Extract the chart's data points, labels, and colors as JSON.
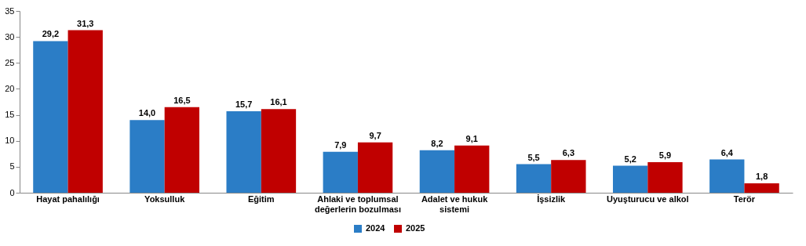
{
  "chart_data": {
    "type": "bar",
    "categories": [
      "Hayat pahalılığı",
      "Yoksulluk",
      "Eğitim",
      "Ahlaki ve toplumsal değerlerin bozulması",
      "Adalet ve hukuk sistemi",
      "İşsizlik",
      "Uyuşturucu ve alkol",
      "Terör"
    ],
    "series": [
      {
        "name": "2024",
        "color": "#2b7dc6",
        "values": [
          29.2,
          14.0,
          15.7,
          7.9,
          8.2,
          5.5,
          5.2,
          6.4
        ],
        "value_labels": [
          "29,2",
          "14,0",
          "15,7",
          "7,9",
          "8,2",
          "5,5",
          "5,2",
          "6,4"
        ]
      },
      {
        "name": "2025",
        "color": "#c00000",
        "values": [
          31.3,
          16.5,
          16.1,
          9.7,
          9.1,
          6.3,
          5.9,
          1.8
        ],
        "value_labels": [
          "31,3",
          "16,5",
          "16,1",
          "9,7",
          "9,1",
          "6,3",
          "5,9",
          "1,8"
        ]
      }
    ],
    "ylim": [
      0,
      35
    ],
    "yticks": [
      0,
      5,
      10,
      15,
      20,
      25,
      30,
      35
    ],
    "grid": false,
    "legend": "bottom"
  }
}
